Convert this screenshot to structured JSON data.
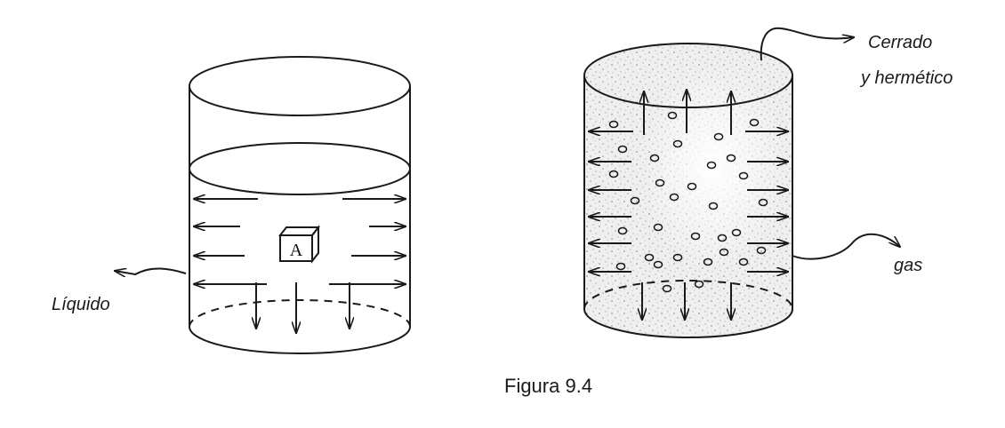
{
  "figure": {
    "caption": "Figura 9.4"
  },
  "left_container": {
    "cube_letter": "A",
    "label_liquid": "Líquido"
  },
  "right_container": {
    "label_closed_line1": "Cerrado",
    "label_closed_line2": "y hermético",
    "label_gas": "gas"
  }
}
